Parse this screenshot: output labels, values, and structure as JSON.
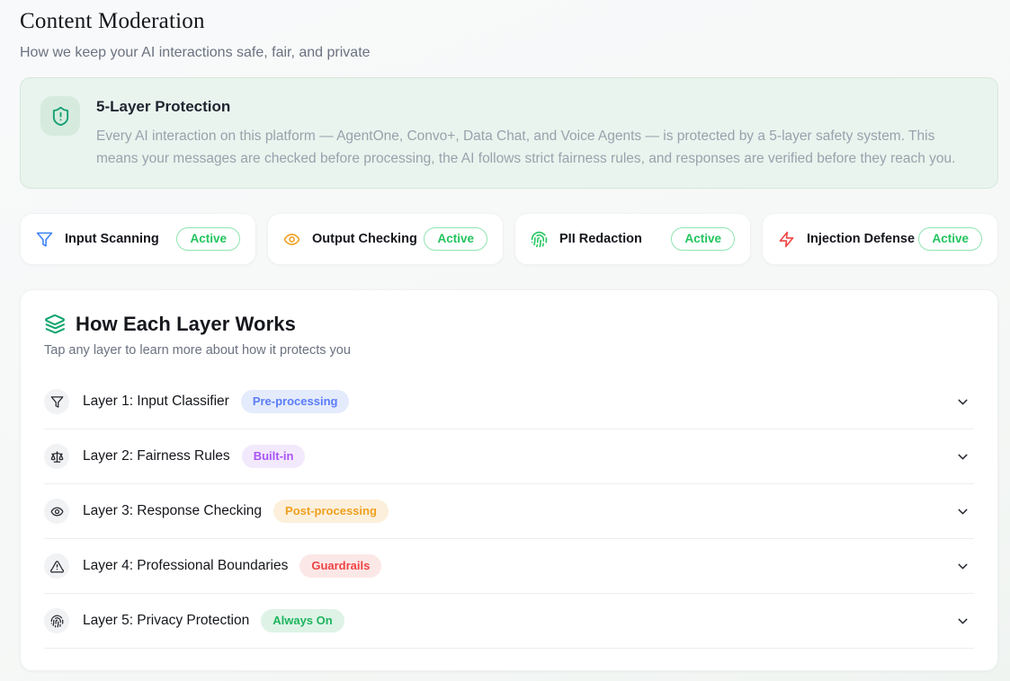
{
  "page": {
    "title": "Content Moderation",
    "subtitle": "How we keep your AI interactions safe, fair, and private"
  },
  "banner": {
    "icon": "shield-alert-icon",
    "icon_color": "#17a074",
    "bg_color": "#e9f4ee",
    "title": "5-Layer Protection",
    "body": "Every AI interaction on this platform — AgentOne, Convo+, Data Chat, and Voice Agents — is protected by a 5-layer safety system. This means your messages are checked before processing, the AI follows strict fairness rules, and responses are verified before they reach you."
  },
  "status_cards": [
    {
      "label": "Input Scanning",
      "badge": "Active",
      "icon": "filter-icon",
      "icon_color": "#3b82f6"
    },
    {
      "label": "Output Checking",
      "badge": "Active",
      "icon": "eye-icon",
      "icon_color": "#f0a020"
    },
    {
      "label": "PII Redaction",
      "badge": "Active",
      "icon": "fingerprint-icon",
      "icon_color": "#22c55e"
    },
    {
      "label": "Injection Defense",
      "badge": "Active",
      "icon": "zap-icon",
      "icon_color": "#ef4444"
    }
  ],
  "active_badge_color": "#22c55e",
  "layers_section": {
    "icon": "layers-icon",
    "icon_color": "#10a56e",
    "title": "How Each Layer Works",
    "subtitle": "Tap any layer to learn more about how it protects you",
    "rows": [
      {
        "label": "Layer 1: Input Classifier",
        "badge": "Pre-processing",
        "badge_bg": "#e4ebfc",
        "badge_color": "#5b7cfa",
        "icon": "filter-icon"
      },
      {
        "label": "Layer 2: Fairness Rules",
        "badge": "Built-in",
        "badge_bg": "#f3e9fc",
        "badge_color": "#a855f7",
        "icon": "scale-icon"
      },
      {
        "label": "Layer 3: Response Checking",
        "badge": "Post-processing",
        "badge_bg": "#fcf0dc",
        "badge_color": "#f0a020",
        "icon": "eye-icon"
      },
      {
        "label": "Layer 4: Professional Boundaries",
        "badge": "Guardrails",
        "badge_bg": "#fce7e7",
        "badge_color": "#ee4444",
        "icon": "alert-triangle-icon"
      },
      {
        "label": "Layer 5: Privacy Protection",
        "badge": "Always On",
        "badge_bg": "#def3e6",
        "badge_color": "#1db45e",
        "icon": "fingerprint-icon"
      }
    ]
  }
}
